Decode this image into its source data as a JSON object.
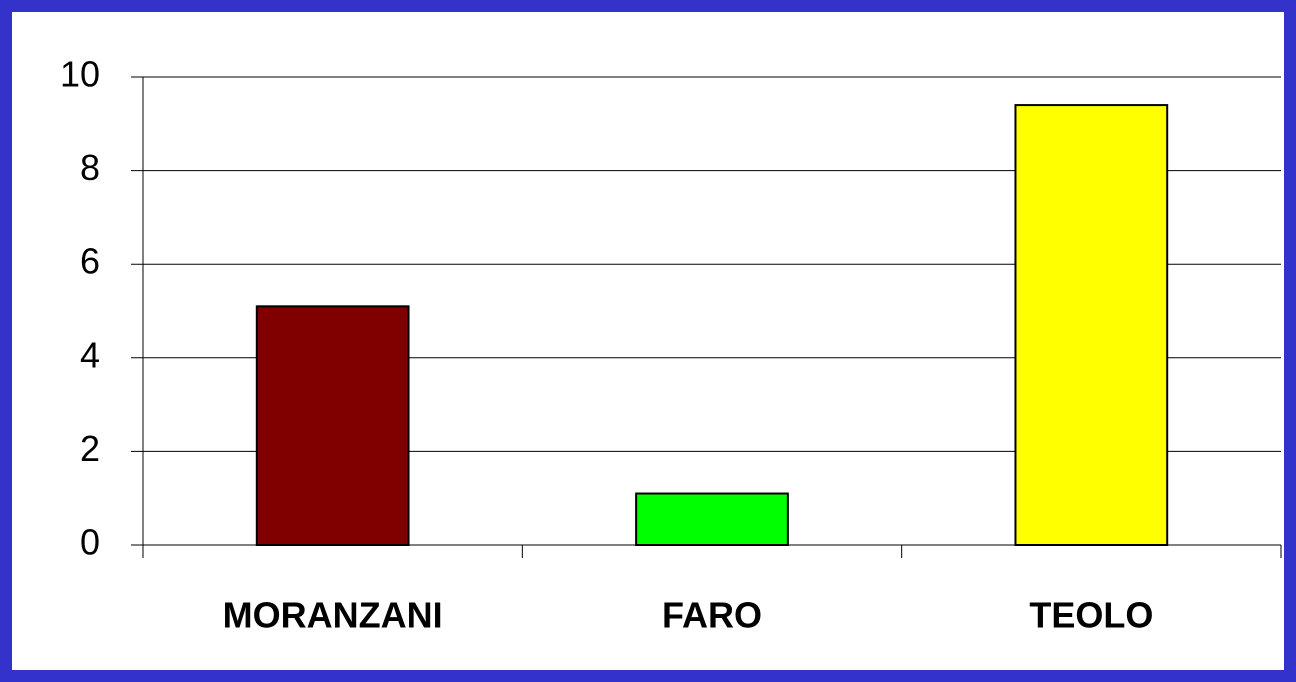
{
  "chart_data": {
    "type": "bar",
    "categories": [
      "MORANZANI",
      "FARO",
      "TEOLO"
    ],
    "values": [
      5.1,
      1.1,
      9.4
    ],
    "colors": [
      "#800000",
      "#00ff00",
      "#ffff00"
    ],
    "ylim": [
      0,
      10
    ],
    "yticks": [
      0,
      2,
      4,
      6,
      8,
      10
    ],
    "grid": true
  }
}
